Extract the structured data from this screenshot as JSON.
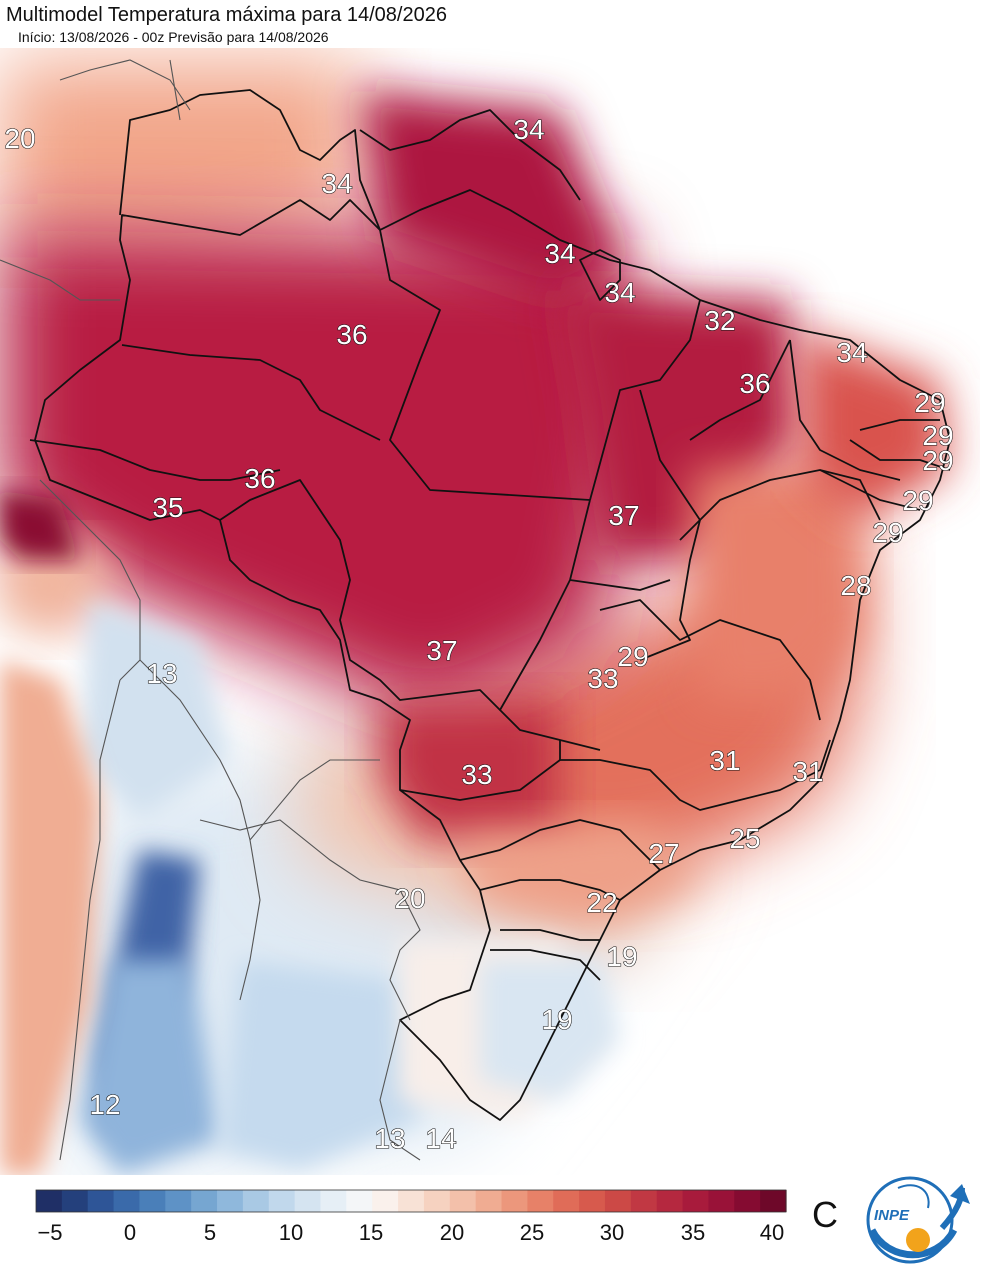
{
  "header": {
    "title": "Multimodel Temperatura máxima para 14/08/2026",
    "subtitle": "Início: 13/08/2026 - 00z  Previsão para 14/08/2026"
  },
  "map": {
    "temperature_labels": [
      {
        "id": "nw-colombia",
        "text": "20"
      },
      {
        "id": "roraima",
        "text": "34"
      },
      {
        "id": "amapa",
        "text": "34"
      },
      {
        "id": "para-north",
        "text": "34"
      },
      {
        "id": "marajo",
        "text": "34"
      },
      {
        "id": "maranhao-coast",
        "text": "32"
      },
      {
        "id": "ceara",
        "text": "34"
      },
      {
        "id": "amazonas",
        "text": "36"
      },
      {
        "id": "piaui",
        "text": "36"
      },
      {
        "id": "rn-coast",
        "text": "29"
      },
      {
        "id": "pb-coast",
        "text": "29"
      },
      {
        "id": "pe-coast",
        "text": "29"
      },
      {
        "id": "al-coast",
        "text": "29"
      },
      {
        "id": "se-coast",
        "text": "29"
      },
      {
        "id": "rondonia",
        "text": "36"
      },
      {
        "id": "acre",
        "text": "35"
      },
      {
        "id": "tocantins",
        "text": "37"
      },
      {
        "id": "bahia",
        "text": "28"
      },
      {
        "id": "mato-grosso",
        "text": "37"
      },
      {
        "id": "peru-andes",
        "text": "13"
      },
      {
        "id": "df",
        "text": "29"
      },
      {
        "id": "goias",
        "text": "33"
      },
      {
        "id": "mato-grosso-sul",
        "text": "33"
      },
      {
        "id": "minas-gerais",
        "text": "31"
      },
      {
        "id": "espirito-santo",
        "text": "31"
      },
      {
        "id": "rio-coast",
        "text": "25"
      },
      {
        "id": "sao-paulo",
        "text": "27"
      },
      {
        "id": "paraguay",
        "text": "20"
      },
      {
        "id": "parana",
        "text": "22"
      },
      {
        "id": "santa-catarina",
        "text": "19"
      },
      {
        "id": "rio-grande-sul",
        "text": "19"
      },
      {
        "id": "chile",
        "text": "12"
      },
      {
        "id": "argentina-sw",
        "text": "13"
      },
      {
        "id": "uruguay-border",
        "text": "14"
      }
    ],
    "colors": {
      "very_hot": "#a8123c",
      "hot": "#c42a4a",
      "warm": "#e4685a",
      "mild": "#f1aa8e",
      "neutral": "#f8efea",
      "cool": "#dbe8f3",
      "cold": "#8fb6da",
      "very_cold": "#2d4e8f"
    }
  },
  "colorbar": {
    "ticks": [
      "−5",
      "0",
      "5",
      "10",
      "15",
      "20",
      "25",
      "30",
      "35",
      "40"
    ],
    "unit": "C",
    "colors": [
      "#1f2f66",
      "#24407c",
      "#2e5597",
      "#3a6aaa",
      "#4a7fb9",
      "#5e92c6",
      "#76a6d1",
      "#8fb8dc",
      "#a9c9e4",
      "#c1d8ec",
      "#d5e4f1",
      "#e6eff6",
      "#f4f6f8",
      "#faf1ec",
      "#f8e2d6",
      "#f6d2c0",
      "#f3c0aa",
      "#f0ac92",
      "#ec977c",
      "#e78168",
      "#e06c58",
      "#d75a4d",
      "#cc4946",
      "#c13843",
      "#b5283f",
      "#a81b3c",
      "#991238",
      "#850b31",
      "#6e0829"
    ]
  },
  "logo": {
    "text": "INPE"
  }
}
